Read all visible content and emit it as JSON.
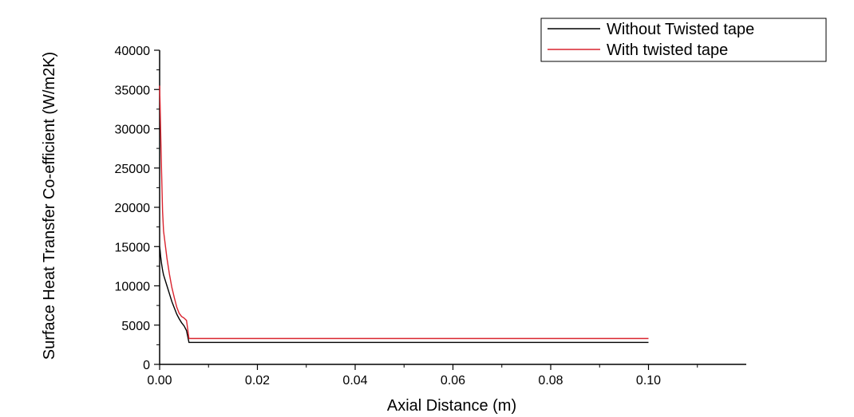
{
  "chart_data": {
    "type": "line",
    "xlabel": "Axial Distance (m)",
    "ylabel": "Surface Heat Transfer Co-efficient (W/m2K)",
    "xlim": [
      0,
      0.12
    ],
    "ylim": [
      0,
      40000
    ],
    "x_ticks": [
      0.0,
      0.02,
      0.04,
      0.06,
      0.08,
      0.1
    ],
    "x_tick_labels": [
      "0.00",
      "0.02",
      "0.04",
      "0.06",
      "0.08",
      "0.10"
    ],
    "y_ticks": [
      0,
      5000,
      10000,
      15000,
      20000,
      25000,
      30000,
      35000,
      40000
    ],
    "y_tick_labels": [
      "0",
      "5000",
      "10000",
      "15000",
      "20000",
      "25000",
      "30000",
      "35000",
      "40000"
    ],
    "grid": false,
    "legend_position": "top-right",
    "series": [
      {
        "name": "Without Twisted tape",
        "color": "#000000",
        "x": [
          0.0,
          0.0001,
          0.0002,
          0.0004,
          0.0006,
          0.0008,
          0.001,
          0.0015,
          0.002,
          0.0025,
          0.003,
          0.0035,
          0.004,
          0.0045,
          0.005,
          0.0055,
          0.006,
          0.01,
          0.02,
          0.04,
          0.06,
          0.08,
          0.1
        ],
        "y": [
          15000,
          14500,
          13800,
          12800,
          12000,
          11400,
          11000,
          10000,
          9000,
          8000,
          7200,
          6400,
          5800,
          5300,
          4900,
          4300,
          2800,
          2800,
          2800,
          2800,
          2800,
          2800,
          2800
        ]
      },
      {
        "name": "With twisted tape",
        "color": "#d9232e",
        "x": [
          0.0,
          0.0001,
          0.0002,
          0.0004,
          0.0006,
          0.0008,
          0.001,
          0.0015,
          0.002,
          0.0025,
          0.003,
          0.0035,
          0.004,
          0.0045,
          0.005,
          0.0055,
          0.006,
          0.01,
          0.02,
          0.04,
          0.06,
          0.08,
          0.1
        ],
        "y": [
          35500,
          33000,
          30000,
          24500,
          19500,
          17000,
          16000,
          13500,
          11500,
          9800,
          8500,
          7300,
          6500,
          6100,
          5900,
          5600,
          3300,
          3300,
          3300,
          3300,
          3300,
          3300,
          3300
        ]
      }
    ]
  }
}
